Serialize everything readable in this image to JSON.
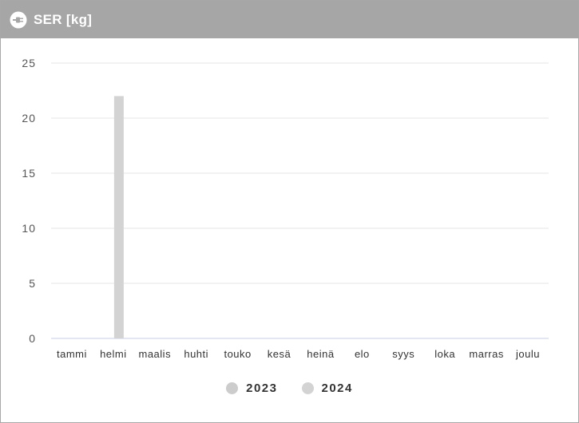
{
  "header": {
    "title": "SER [kg]",
    "icon": "plug-icon",
    "background_color": "#a6a6a6"
  },
  "chart_data": {
    "type": "bar",
    "title": "SER [kg]",
    "xlabel": "",
    "ylabel": "",
    "categories": [
      "tammi",
      "helmi",
      "maalis",
      "huhti",
      "touko",
      "kesä",
      "heinä",
      "elo",
      "syys",
      "loka",
      "marras",
      "joulu"
    ],
    "ylim": [
      0,
      25
    ],
    "yticks": [
      0,
      5,
      10,
      15,
      20,
      25
    ],
    "grid": true,
    "legend_position": "bottom",
    "series": [
      {
        "name": "2023",
        "color": "#cccccc",
        "values": [
          0,
          0,
          0,
          0,
          0,
          0,
          0,
          0,
          0,
          0,
          0,
          0
        ]
      },
      {
        "name": "2024",
        "color": "#d3d3d3",
        "values": [
          0,
          22,
          0,
          0,
          0,
          0,
          0,
          0,
          0,
          0,
          0,
          0
        ]
      }
    ]
  }
}
